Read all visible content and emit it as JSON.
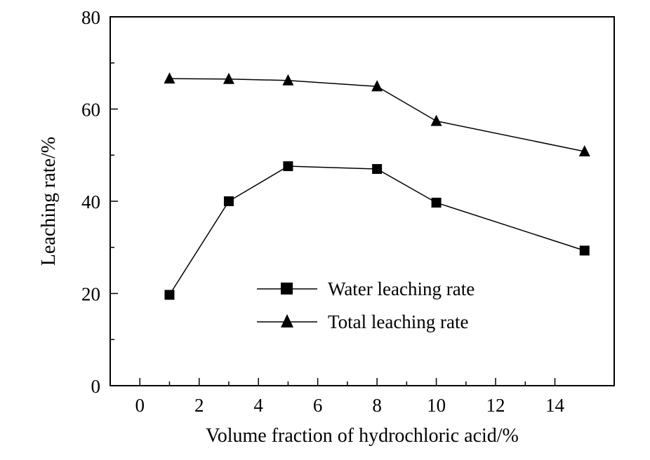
{
  "chart_data": {
    "type": "line",
    "title": "",
    "xlabel": "Volume fraction of hydrochloric acid/%",
    "ylabel": "Leaching rate/%",
    "xlim": [
      -1,
      16
    ],
    "ylim": [
      0,
      80
    ],
    "xticks": [
      0,
      2,
      4,
      6,
      8,
      10,
      12,
      14
    ],
    "yticks": [
      0,
      20,
      40,
      60,
      80
    ],
    "grid": false,
    "legend_position": "center",
    "series": [
      {
        "name": "Water leaching rate",
        "marker": "square",
        "x": [
          1,
          3,
          5,
          8,
          10,
          15
        ],
        "y": [
          19.7,
          40.0,
          47.6,
          47.0,
          39.7,
          29.3
        ]
      },
      {
        "name": "Total leaching rate",
        "marker": "triangle",
        "x": [
          1,
          3,
          5,
          8,
          10,
          15
        ],
        "y": [
          66.6,
          66.5,
          66.2,
          64.9,
          57.4,
          50.8
        ]
      }
    ]
  }
}
